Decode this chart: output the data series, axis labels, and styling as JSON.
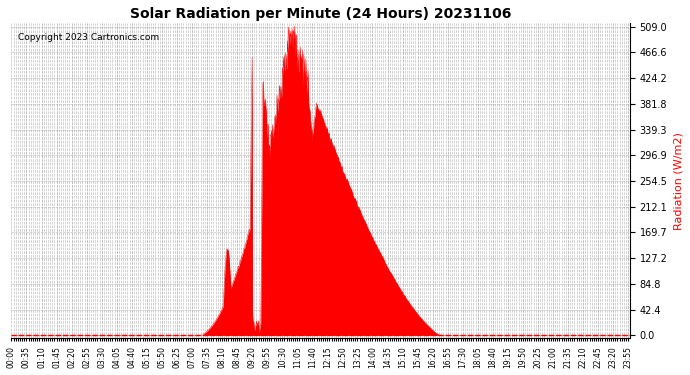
{
  "title": "Solar Radiation per Minute (24 Hours) 20231106",
  "copyright_text": "Copyright 2023 Cartronics.com",
  "ylabel": "Radiation (W/m2)",
  "ylabel_color": "#ff0000",
  "background_color": "#ffffff",
  "plot_bg_color": "#ffffff",
  "fill_color": "#ff0000",
  "line_color": "#ff0000",
  "dashed_line_color": "#ff0000",
  "grid_color": "#b0b0b0",
  "ylim_min": -5,
  "ylim_max": 514,
  "yticks": [
    0.0,
    42.4,
    84.8,
    127.2,
    169.7,
    212.1,
    254.5,
    296.9,
    339.3,
    381.8,
    424.2,
    466.6,
    509.0
  ],
  "total_minutes": 1440,
  "sunrise_minute": 435,
  "sunset_minute": 1005,
  "peak_minute": 650,
  "peak_value": 509.0
}
